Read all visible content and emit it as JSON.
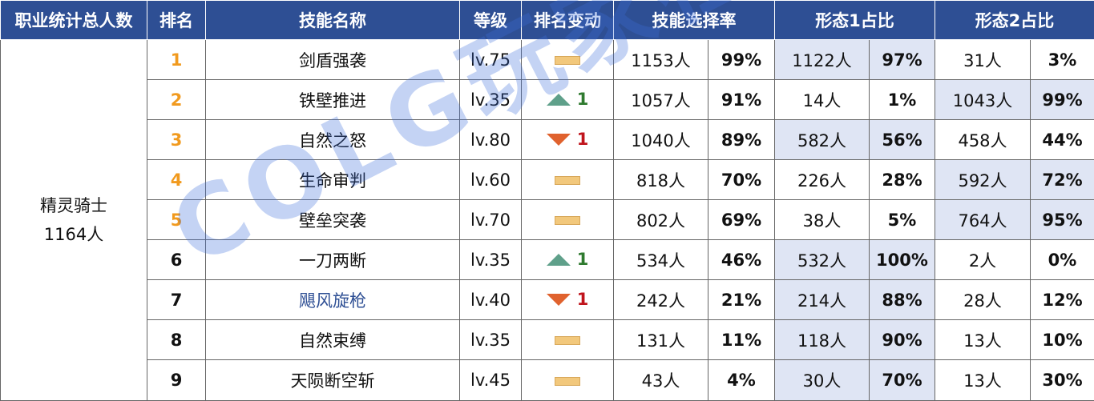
{
  "headers": {
    "profession": "职业统计总人数",
    "rank": "排名",
    "skill": "技能名称",
    "level": "等级",
    "change": "排名变动",
    "select_rate": "技能选择率",
    "form1": "形态1占比",
    "form2": "形态2占比"
  },
  "profession": {
    "name": "精灵骑士",
    "count": "1164人"
  },
  "rows": [
    {
      "rank": "1",
      "skill": "剑盾强袭",
      "level": "lv.75",
      "change_dir": "none",
      "change_val": "",
      "count": "1153人",
      "pct": "99%",
      "f1_count": "1122人",
      "f1_pct": "97%",
      "f2_count": "31人",
      "f2_pct": "3%"
    },
    {
      "rank": "2",
      "skill": "铁壁推进",
      "level": "lv.35",
      "change_dir": "up",
      "change_val": "1",
      "count": "1057人",
      "pct": "91%",
      "f1_count": "14人",
      "f1_pct": "1%",
      "f2_count": "1043人",
      "f2_pct": "99%"
    },
    {
      "rank": "3",
      "skill": "自然之怒",
      "level": "lv.80",
      "change_dir": "down",
      "change_val": "1",
      "count": "1040人",
      "pct": "89%",
      "f1_count": "582人",
      "f1_pct": "56%",
      "f2_count": "458人",
      "f2_pct": "44%"
    },
    {
      "rank": "4",
      "skill": "生命审判",
      "level": "lv.60",
      "change_dir": "none",
      "change_val": "",
      "count": "818人",
      "pct": "70%",
      "f1_count": "226人",
      "f1_pct": "28%",
      "f2_count": "592人",
      "f2_pct": "72%"
    },
    {
      "rank": "5",
      "skill": "壁垒突袭",
      "level": "lv.70",
      "change_dir": "none",
      "change_val": "",
      "count": "802人",
      "pct": "69%",
      "f1_count": "38人",
      "f1_pct": "5%",
      "f2_count": "764人",
      "f2_pct": "95%"
    },
    {
      "rank": "6",
      "skill": "一刀两断",
      "level": "lv.35",
      "change_dir": "up",
      "change_val": "1",
      "count": "534人",
      "pct": "46%",
      "f1_count": "532人",
      "f1_pct": "100%",
      "f2_count": "2人",
      "f2_pct": "0%"
    },
    {
      "rank": "7",
      "skill": "飓风旋枪",
      "level": "lv.40",
      "change_dir": "down",
      "change_val": "1",
      "count": "242人",
      "pct": "21%",
      "f1_count": "214人",
      "f1_pct": "88%",
      "f2_count": "28人",
      "f2_pct": "12%"
    },
    {
      "rank": "8",
      "skill": "自然束缚",
      "level": "lv.35",
      "change_dir": "none",
      "change_val": "",
      "count": "131人",
      "pct": "11%",
      "f1_count": "118人",
      "f1_pct": "90%",
      "f2_count": "13人",
      "f2_pct": "10%"
    },
    {
      "rank": "9",
      "skill": "天陨断空斩",
      "level": "lv.45",
      "change_dir": "none",
      "change_val": "",
      "count": "43人",
      "pct": "4%",
      "f1_count": "30人",
      "f1_pct": "70%",
      "f2_count": "13人",
      "f2_pct": "30%"
    }
  ],
  "watermark": "COLG玩家社区",
  "colors": {
    "header_bg": "#2e4f94",
    "highlight": "#dfe5f4",
    "top_rank": "#f19a1e",
    "up": "#5fa08a",
    "down": "#e0622e"
  }
}
